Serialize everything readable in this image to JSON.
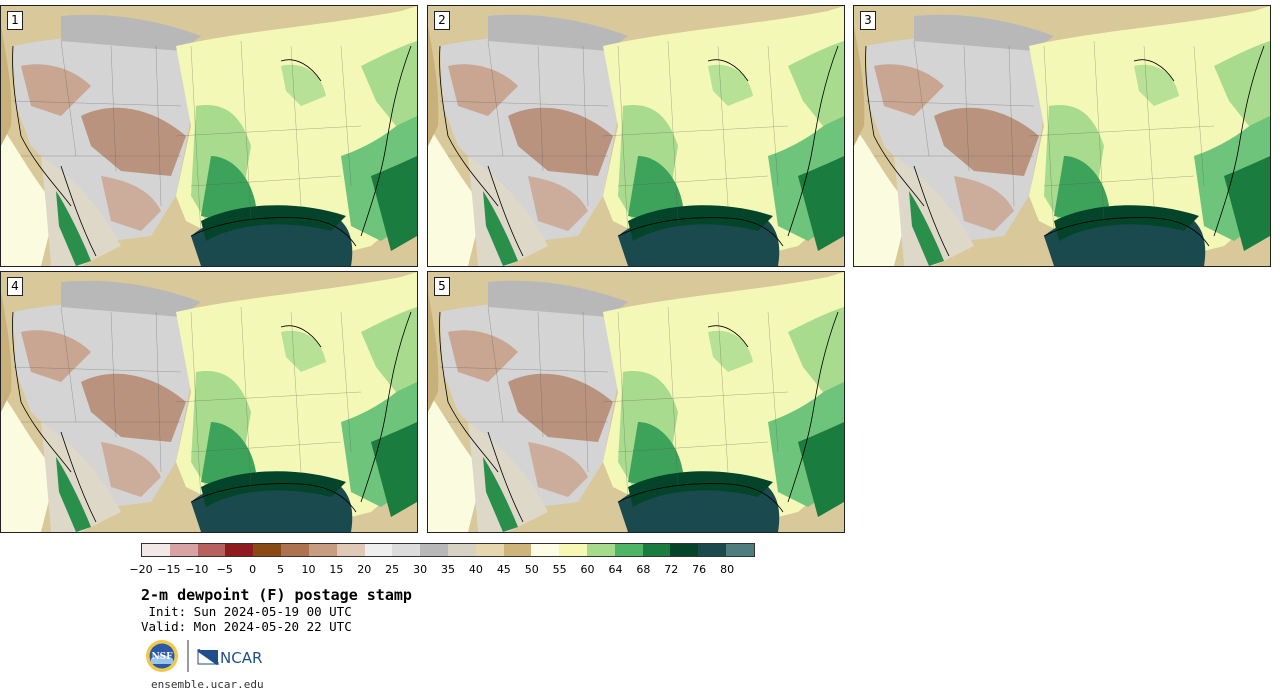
{
  "panels": [
    {
      "label": "1"
    },
    {
      "label": "2"
    },
    {
      "label": "3"
    },
    {
      "label": "4"
    },
    {
      "label": "5"
    }
  ],
  "colorbar": {
    "colors": [
      "#f3e8e8",
      "#d9a3a3",
      "#b66060",
      "#8f1a20",
      "#8a4a13",
      "#ad7350",
      "#c79c80",
      "#e1c9b8",
      "#efefef",
      "#dcdcdc",
      "#b8b8b8",
      "#d8d2c3",
      "#e6d7ae",
      "#cdb47a",
      "#fdfde6",
      "#f5f9b4",
      "#a6db8c",
      "#4fb566",
      "#1a7c3e",
      "#04442a",
      "#1a4a4e",
      "#4e7d7d"
    ],
    "tick_labels": [
      "−20",
      "−15",
      "−10",
      "−5",
      "0",
      "5",
      "10",
      "15",
      "20",
      "25",
      "30",
      "35",
      "40",
      "45",
      "50",
      "55",
      "60",
      "64",
      "68",
      "72",
      "76",
      "80"
    ]
  },
  "title": "2-m dewpoint (F) postage stamp",
  "init": " Init: Sun 2024-05-19 00 UTC",
  "valid": "Valid: Mon 2024-05-20 22 UTC",
  "website": "ensemble.ucar.edu",
  "logos": {
    "nsf": "NSF",
    "ncar": "NCAR"
  }
}
